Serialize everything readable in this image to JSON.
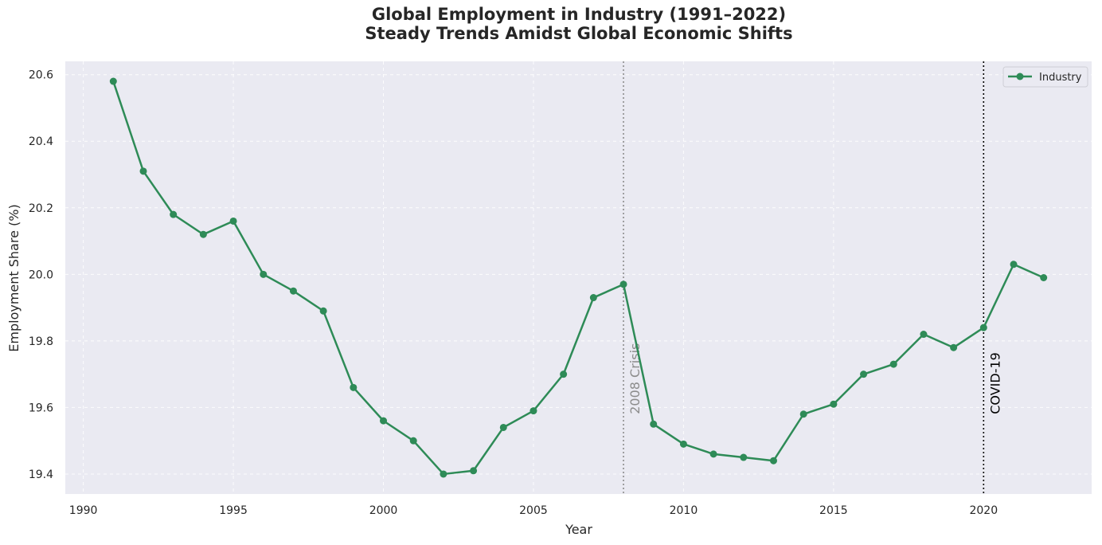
{
  "chart_data": {
    "type": "line",
    "title": "Global Employment in Industry (1991–2022)",
    "subtitle": "Steady Trends Amidst Global Economic Shifts",
    "xlabel": "Year",
    "ylabel": "Employment Share (%)",
    "xlim": [
      1989.4,
      2023.6
    ],
    "ylim": [
      19.34,
      20.64
    ],
    "x_ticks": [
      "1990",
      "1995",
      "2000",
      "2005",
      "2010",
      "2015",
      "2020"
    ],
    "y_ticks": [
      "19.4",
      "19.6",
      "19.8",
      "20.0",
      "20.2",
      "20.4",
      "20.6"
    ],
    "grid": true,
    "legend_position": "top-right",
    "series": [
      {
        "name": "Industry",
        "color": "#2e8b57",
        "marker": "circle",
        "x": [
          1991,
          1992,
          1993,
          1994,
          1995,
          1996,
          1997,
          1998,
          1999,
          2000,
          2001,
          2002,
          2003,
          2004,
          2005,
          2006,
          2007,
          2008,
          2009,
          2010,
          2011,
          2012,
          2013,
          2014,
          2015,
          2016,
          2017,
          2018,
          2019,
          2020,
          2021,
          2022
        ],
        "y": [
          20.58,
          20.31,
          20.18,
          20.12,
          20.16,
          20.0,
          19.95,
          19.89,
          19.66,
          19.56,
          19.5,
          19.4,
          19.41,
          19.54,
          19.59,
          19.7,
          19.93,
          19.97,
          19.55,
          19.49,
          19.46,
          19.45,
          19.44,
          19.58,
          19.61,
          19.7,
          19.73,
          19.82,
          19.78,
          19.84,
          20.03,
          19.99
        ]
      }
    ],
    "annotations": [
      {
        "x": 2008,
        "label": "2008 Crisis",
        "color": "#8c8c8c",
        "line_style": "dotted"
      },
      {
        "x": 2020,
        "label": "COVID-19",
        "color": "#000000",
        "line_style": "dotted"
      }
    ]
  }
}
